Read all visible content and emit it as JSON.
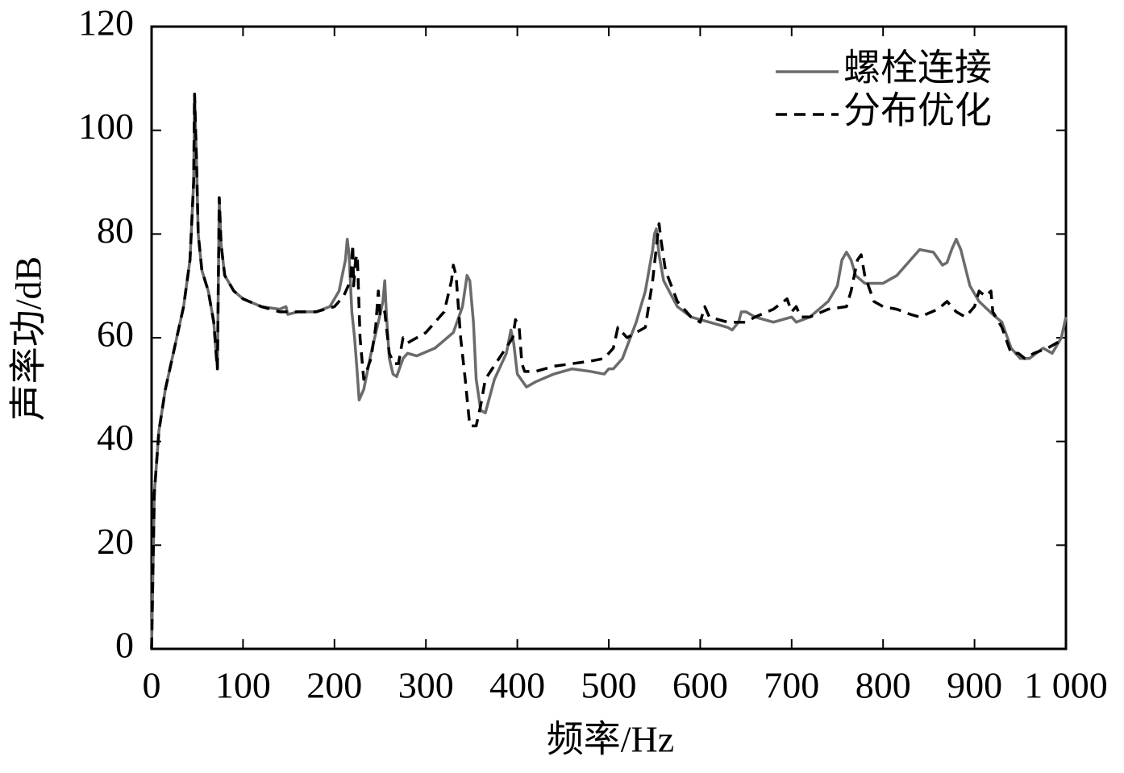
{
  "chart_data": {
    "type": "line",
    "x_label": "频率/Hz",
    "y_label": "声率功/dB",
    "xlim": [
      0,
      1000
    ],
    "ylim": [
      0,
      120
    ],
    "xticks": [
      0,
      100,
      200,
      300,
      400,
      500,
      600,
      700,
      800,
      900,
      {
        "value": 1000,
        "label": "1 000"
      }
    ],
    "yticks": [
      0,
      20,
      40,
      60,
      80,
      100,
      120
    ],
    "legend": "upper right",
    "series": [
      {
        "name": "螺栓连接",
        "color": "#6b6b6b",
        "style": "solid",
        "x": [
          0,
          3,
          8,
          15,
          25,
          35,
          42,
          46,
          47,
          49,
          51,
          55,
          62,
          68,
          71,
          72,
          74,
          76,
          80,
          90,
          100,
          120,
          140,
          147,
          149,
          160,
          180,
          195,
          205,
          212,
          214,
          216,
          219,
          222,
          225,
          227,
          232,
          240,
          248,
          253,
          255,
          257,
          260,
          264,
          268,
          275,
          280,
          290,
          310,
          330,
          340,
          345,
          348,
          352,
          355,
          360,
          365,
          375,
          388,
          393,
          396,
          400,
          410,
          420,
          440,
          460,
          480,
          495,
          500,
          505,
          515,
          530,
          540,
          548,
          550,
          552,
          555,
          560,
          575,
          590,
          610,
          630,
          635,
          642,
          645,
          650,
          660,
          680,
          700,
          705,
          720,
          740,
          750,
          755,
          760,
          765,
          770,
          780,
          800,
          815,
          830,
          840,
          855,
          865,
          870,
          875,
          880,
          885,
          895,
          905,
          920,
          930,
          940,
          950,
          960,
          975,
          985,
          995,
          1000
        ],
        "values": [
          0,
          30,
          42,
          50,
          58,
          66,
          75,
          90,
          107,
          95,
          80,
          73,
          69,
          63,
          56,
          54,
          87,
          78,
          72,
          69,
          67.5,
          66,
          65.5,
          66,
          64.5,
          65,
          65,
          66,
          69,
          75,
          79,
          76,
          65,
          60,
          53,
          48,
          50,
          57,
          63,
          67,
          71,
          64,
          56,
          53,
          52.5,
          56,
          57,
          56.5,
          58,
          61,
          66,
          72,
          71,
          63,
          52,
          46,
          45.5,
          52,
          57,
          61.5,
          59,
          53,
          50.5,
          51.5,
          53,
          54,
          53.5,
          53,
          54,
          54,
          56,
          63,
          69,
          77,
          80,
          81,
          76,
          71,
          66,
          64,
          63,
          62,
          61.5,
          63,
          65,
          65,
          64,
          63,
          64,
          63,
          64,
          67,
          70,
          75,
          76.5,
          75,
          72,
          70.5,
          70.5,
          72,
          75,
          77,
          76.5,
          74,
          74.5,
          77,
          79,
          77,
          70,
          67,
          64.5,
          63,
          58,
          56,
          56,
          58,
          57,
          60,
          64
        ]
      },
      {
        "name": "分布优化",
        "color": "#000000",
        "style": "dashed",
        "x": [
          0,
          3,
          8,
          15,
          25,
          35,
          42,
          46,
          47,
          49,
          51,
          55,
          62,
          68,
          71,
          72,
          74,
          76,
          80,
          90,
          100,
          120,
          140,
          160,
          180,
          200,
          210,
          215,
          218,
          220,
          221,
          223,
          225,
          228,
          232,
          240,
          245,
          248,
          250,
          255,
          260,
          265,
          270,
          275,
          280,
          300,
          320,
          328,
          330,
          333,
          338,
          343,
          348,
          355,
          360,
          365,
          380,
          395,
          398,
          402,
          405,
          408,
          420,
          440,
          480,
          495,
          505,
          510,
          520,
          540,
          548,
          553,
          555,
          557,
          562,
          575,
          590,
          600,
          605,
          610,
          630,
          650,
          660,
          680,
          695,
          700,
          705,
          710,
          720,
          740,
          760,
          765,
          772,
          776,
          780,
          790,
          800,
          815,
          830,
          840,
          860,
          870,
          880,
          890,
          900,
          905,
          912,
          918,
          920,
          930,
          940,
          948,
          955,
          965,
          980,
          1000
        ],
        "values": [
          0,
          30,
          42,
          50,
          58,
          66,
          75,
          90,
          107,
          95,
          80,
          73,
          69,
          63,
          56,
          54,
          87,
          78,
          72,
          69,
          67.5,
          66,
          65,
          65,
          65,
          66,
          68,
          70,
          72,
          78,
          70,
          75,
          76,
          60,
          52,
          56,
          62,
          69,
          64,
          65,
          57,
          55,
          55,
          60,
          59,
          61,
          65,
          71,
          74,
          72,
          60,
          52,
          43,
          43,
          47,
          52,
          56,
          60,
          63.5,
          62,
          55,
          53.5,
          53.5,
          54.5,
          55.5,
          56,
          58,
          62,
          60,
          62,
          71,
          79,
          82,
          79,
          73,
          67,
          64,
          63,
          66,
          64,
          63,
          63,
          64,
          65.5,
          67.5,
          65,
          66,
          64,
          64,
          65.5,
          66,
          69,
          75,
          76,
          72,
          67,
          66,
          65.5,
          64.5,
          64,
          65.5,
          67,
          65,
          64,
          66,
          69,
          68,
          69,
          65,
          62,
          57,
          57,
          56,
          57,
          58,
          60
        ]
      }
    ]
  }
}
